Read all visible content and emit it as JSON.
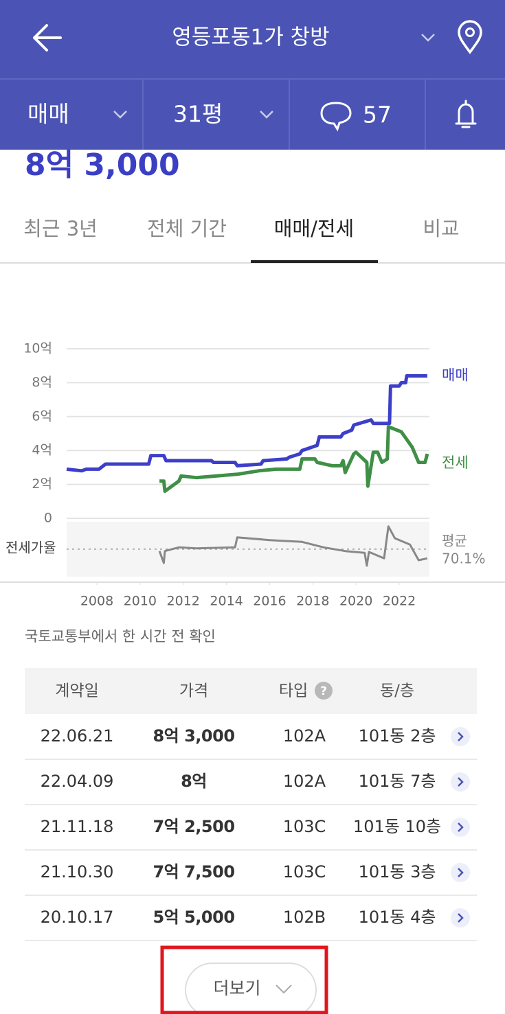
{
  "header": {
    "title": "영등포동1가 창방"
  },
  "filters": {
    "trade_type": "매매",
    "area": "31평",
    "comment_count": 57
  },
  "price": "8억 3,000",
  "tabs": {
    "items": [
      "최근 3년",
      "전체 기간",
      "매매/전세",
      "비교"
    ],
    "active": 2
  },
  "chart_data": {
    "type": "line",
    "xlim": [
      2006.6,
      2023.4
    ],
    "xticks": [
      2008,
      2010,
      2012,
      2014,
      2016,
      2018,
      2020,
      2022
    ],
    "ylim": [
      0,
      10
    ],
    "yticks": [
      0,
      {
        "value": 2,
        "label": "2억"
      },
      {
        "value": 4,
        "label": "4억"
      },
      {
        "value": 6,
        "label": "6억"
      },
      {
        "value": 8,
        "label": "8억"
      },
      {
        "value": 10,
        "label": "10억"
      }
    ],
    "grid": true,
    "series": [
      {
        "name": "매매",
        "color": "#3d3fc9",
        "x": [
          2006.6,
          2007.3,
          2007.5,
          2008.1,
          2008.4,
          2010.4,
          2010.5,
          2011.1,
          2011.2,
          2013.3,
          2013.4,
          2014.4,
          2014.5,
          2015.6,
          2015.7,
          2016.8,
          2016.9,
          2017.4,
          2017.5,
          2018.2,
          2018.3,
          2019.3,
          2019.4,
          2019.8,
          2019.9,
          2020.7,
          2020.8,
          2021.55,
          2021.6,
          2022.0,
          2022.1,
          2022.3,
          2022.35,
          2023.3
        ],
        "values": [
          2.9,
          2.8,
          2.9,
          2.9,
          3.2,
          3.2,
          3.7,
          3.7,
          3.4,
          3.4,
          3.3,
          3.3,
          3.1,
          3.2,
          3.4,
          3.5,
          3.6,
          3.8,
          4.0,
          4.3,
          4.8,
          4.8,
          5.0,
          5.2,
          5.5,
          5.8,
          5.6,
          5.6,
          7.8,
          7.8,
          8.0,
          8.0,
          8.4,
          8.4
        ]
      },
      {
        "name": "전세",
        "color": "#3f8f46",
        "x": [
          2010.9,
          2011.1,
          2011.15,
          2011.8,
          2011.9,
          2012.6,
          2014.5,
          2015.5,
          2016.3,
          2017.4,
          2017.5,
          2018.1,
          2018.2,
          2018.9,
          2019.3,
          2019.4,
          2019.5,
          2019.9,
          2020.0,
          2020.5,
          2020.55,
          2020.8,
          2021.0,
          2021.2,
          2021.45,
          2021.5,
          2022.1,
          2022.6,
          2022.9,
          2023.2,
          2023.3
        ],
        "values": [
          2.2,
          2.2,
          1.6,
          2.2,
          2.5,
          2.4,
          2.6,
          2.8,
          2.9,
          2.9,
          3.5,
          3.5,
          3.3,
          3.1,
          3.1,
          3.4,
          2.7,
          3.8,
          3.9,
          3.3,
          1.9,
          3.9,
          3.9,
          3.3,
          3.5,
          5.4,
          5.1,
          4.2,
          3.3,
          3.3,
          3.8
        ]
      }
    ],
    "ratio": {
      "label": "전세가율",
      "color": "#888888",
      "ylim": [
        40,
        100
      ],
      "x": [
        2010.9,
        2011.1,
        2011.15,
        2011.8,
        2012.6,
        2014.4,
        2014.5,
        2016.0,
        2017.5,
        2018.5,
        2019.5,
        2020.4,
        2020.5,
        2020.6,
        2021.3,
        2021.5,
        2021.8,
        2022.5,
        2022.9,
        2023.3
      ],
      "values": [
        68,
        55,
        68,
        72,
        71,
        72,
        83,
        80,
        78,
        72,
        68,
        66,
        52,
        67,
        60,
        95,
        82,
        75,
        58,
        60
      ],
      "average_label": "평균",
      "average": {
        "value": 70.1,
        "label": "70.1%"
      }
    }
  },
  "source_note": "국토교통부에서 한 시간 전 확인",
  "table": {
    "columns": [
      "계약일",
      "가격",
      "타입",
      "동/층"
    ],
    "rows": [
      [
        "22.06.21",
        "8억 3,000",
        "102A",
        "101동 2층"
      ],
      [
        "22.04.09",
        "8억",
        "102A",
        "101동 7층"
      ],
      [
        "21.11.18",
        "7억 2,500",
        "103C",
        "101동 10층"
      ],
      [
        "21.10.30",
        "7억 7,500",
        "103C",
        "101동 3층"
      ],
      [
        "20.10.17",
        "5억 5,000",
        "102B",
        "101동 4층"
      ]
    ]
  },
  "more_button": "더보기"
}
